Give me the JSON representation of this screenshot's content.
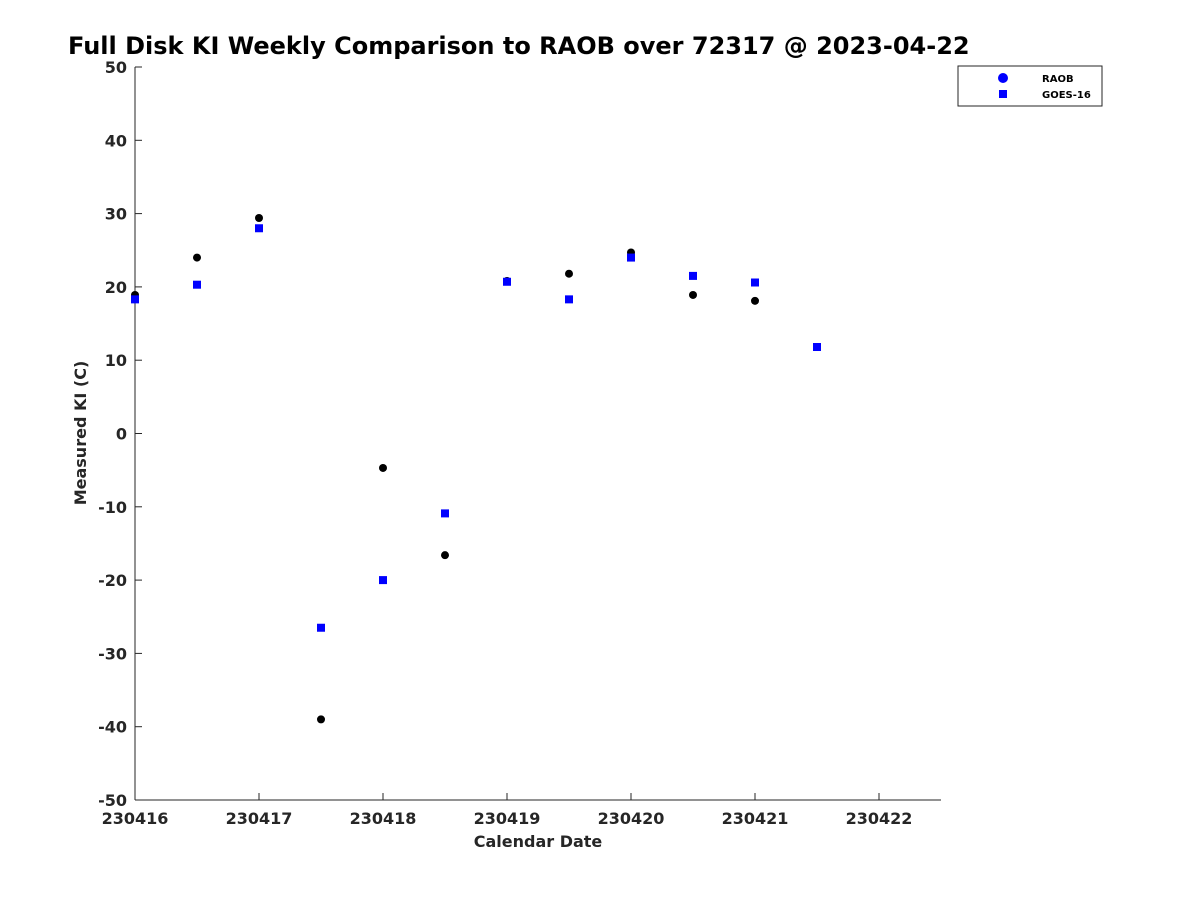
{
  "chart_data": {
    "type": "scatter",
    "title": "Full Disk KI Weekly Comparison to RAOB over 72317 @ 2023-04-22",
    "xlabel": "Calendar Date",
    "ylabel": "Measured KI (C)",
    "xlim": [
      230416,
      230422.5
    ],
    "ylim": [
      -50,
      50
    ],
    "xticks": [
      230416,
      230417,
      230418,
      230419,
      230420,
      230421,
      230422
    ],
    "xtick_labels": [
      "230416",
      "230417",
      "230418",
      "230419",
      "230420",
      "230421",
      "230422"
    ],
    "yticks": [
      50,
      40,
      30,
      20,
      10,
      0,
      -10,
      -20,
      -30,
      -40,
      -50
    ],
    "ytick_labels": [
      "50",
      "40",
      "30",
      "20",
      "10",
      "0",
      "-10",
      "-20",
      "-30",
      "-40",
      "-50"
    ],
    "grid": false,
    "legend_position": "top-right",
    "series": [
      {
        "name": "RAOB",
        "marker": "circle",
        "color": "#000000",
        "legend_color": "#0000ff",
        "x": [
          230416,
          230416.5,
          230417,
          230417.5,
          230418,
          230418.5,
          230419,
          230419.5,
          230420,
          230420.5,
          230421,
          230421.5
        ],
        "y": [
          18.9,
          24.0,
          29.4,
          -39.0,
          -4.7,
          -16.6,
          20.8,
          21.8,
          24.7,
          18.9,
          18.1,
          11.8
        ]
      },
      {
        "name": "GOES-16",
        "marker": "square",
        "color": "#0000ff",
        "legend_color": "#0000ff",
        "x": [
          230416,
          230416.5,
          230417,
          230417.5,
          230418,
          230418.5,
          230419,
          230419.5,
          230420,
          230420.5,
          230421,
          230421.5
        ],
        "y": [
          18.3,
          20.3,
          28.0,
          -26.5,
          -20.0,
          -10.9,
          20.7,
          18.3,
          24.0,
          21.5,
          20.6,
          11.8
        ]
      }
    ]
  }
}
